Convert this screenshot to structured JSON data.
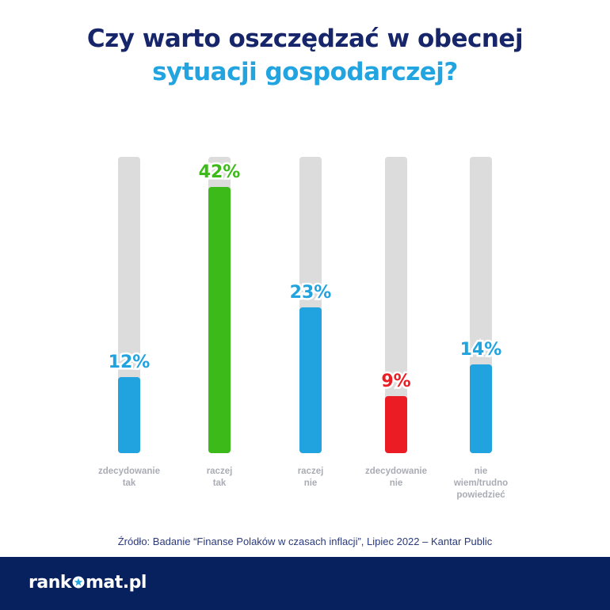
{
  "chart_data": {
    "type": "bar",
    "title_line1": "Czy warto oszczędzać w obecnej",
    "title_line2": "sytuacji gospodarczej?",
    "unit": "%",
    "ylim": [
      0,
      45
    ],
    "bars": [
      {
        "label": [
          "zdecydowanie",
          "tak"
        ],
        "value": 12,
        "value_label": "12%",
        "color": "#21a3df"
      },
      {
        "label": [
          "raczej",
          "tak"
        ],
        "value": 42,
        "value_label": "42%",
        "color": "#3cba19"
      },
      {
        "label": [
          "raczej",
          "nie"
        ],
        "value": 23,
        "value_label": "23%",
        "color": "#21a3df"
      },
      {
        "label": [
          "zdecydowanie",
          "nie"
        ],
        "value": 9,
        "value_label": "9%",
        "color": "#ec1c24"
      },
      {
        "label": [
          "nie",
          "wiem/trudno",
          "powiedzieć"
        ],
        "value": 14,
        "value_label": "14%",
        "color": "#21a3df"
      }
    ],
    "track_color": "#dcdcdc",
    "category_label_color": "#a9acb4"
  },
  "source": "Źródło: Badanie “Finanse Polaków w czasach inflacji”, Lipiec 2022 – Kantar Public",
  "logo": {
    "before": "rank",
    "after": "mat.pl",
    "star_color": "#22a4e0"
  }
}
